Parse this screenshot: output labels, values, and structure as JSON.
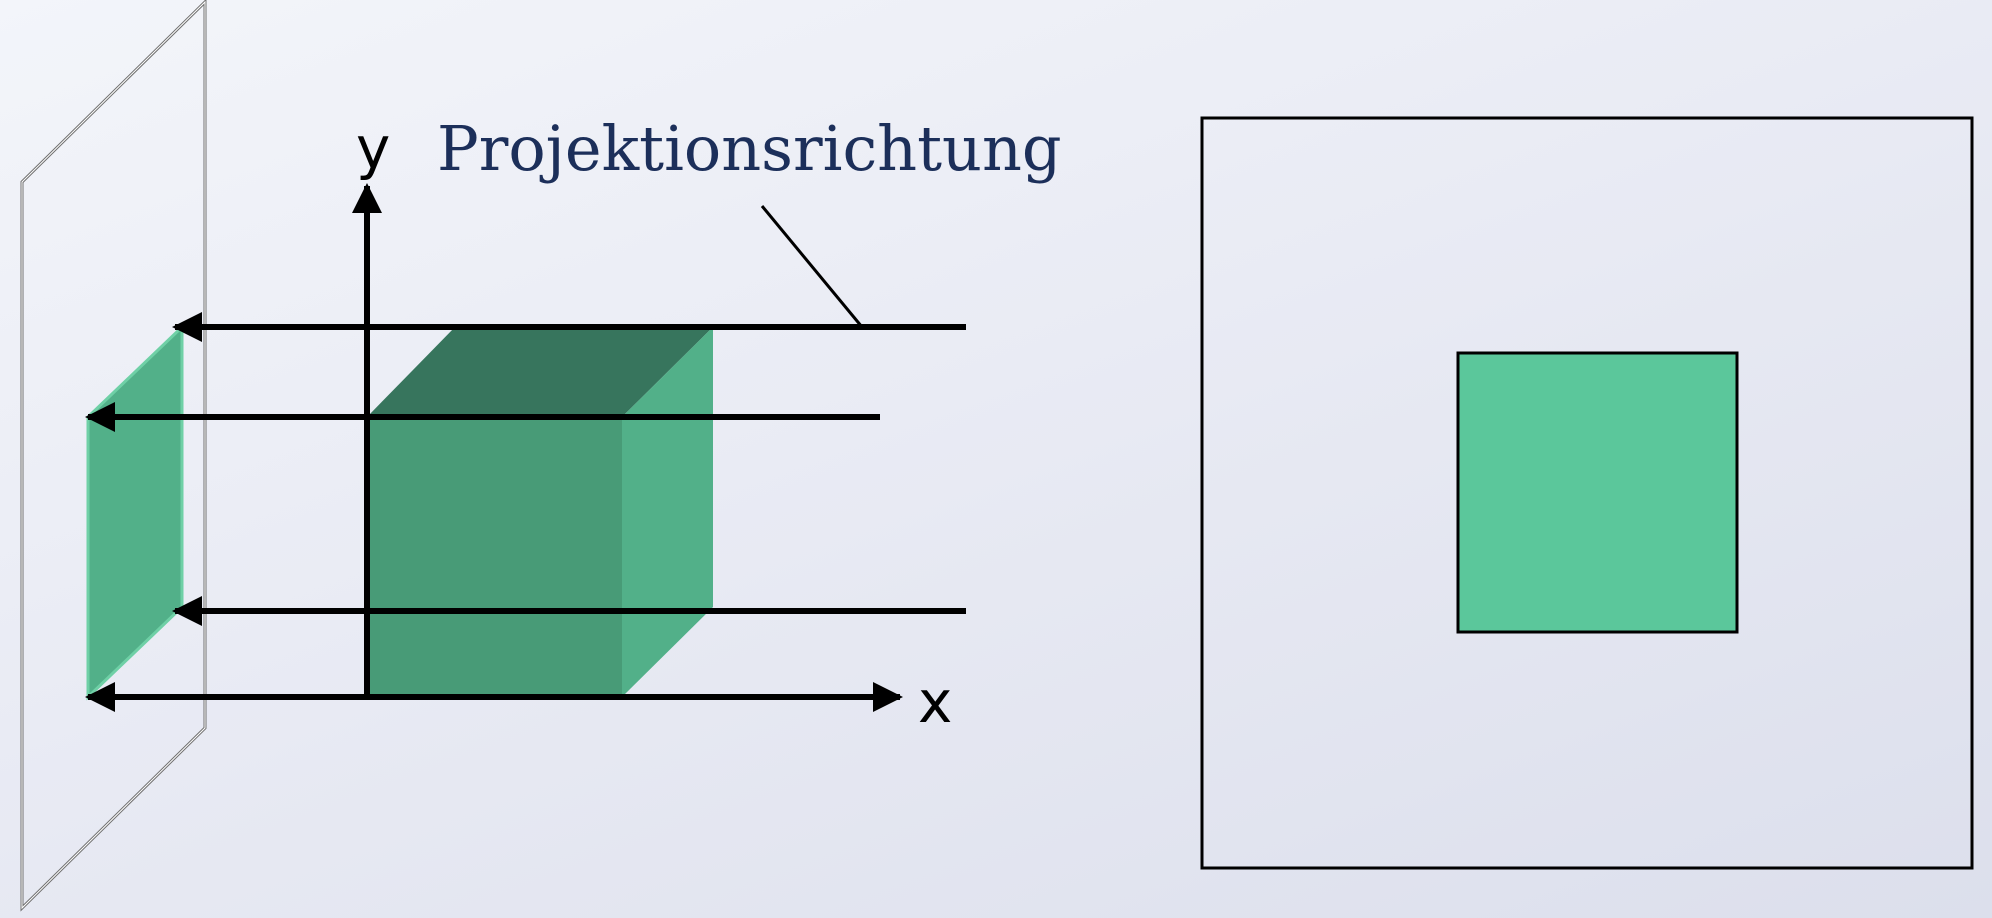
{
  "diagram": {
    "direction_label": "Projektionsrichtung",
    "x_axis_label": "x",
    "y_axis_label": "y"
  },
  "colors": {
    "background_top": "#f3f5fa",
    "background_bottom": "#dcdfec",
    "cube_top": "#37755d",
    "cube_front": "#489b77",
    "cube_side": "#52b089",
    "projection": "#52b089",
    "projection_result": "#5bc79b",
    "label_text": "#1c2f5a",
    "lines": "#000000",
    "plane_edge": "#7a7a7a"
  },
  "icons": {
    "arrowhead": "arrowhead-icon"
  }
}
